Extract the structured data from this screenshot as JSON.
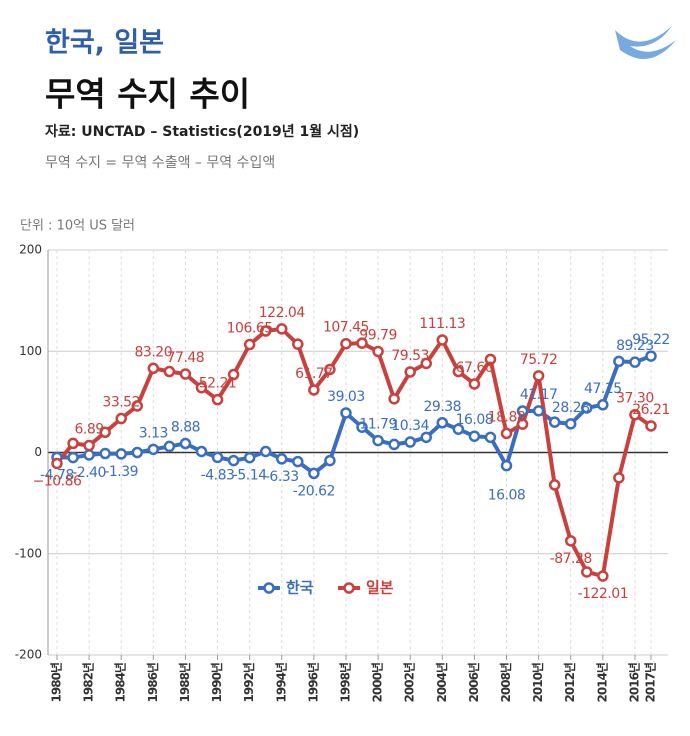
{
  "chart_data": {
    "type": "line",
    "title": "한국, 일본",
    "subtitle": "무역 수지 추이",
    "source": "자료: UNCTAD – Statistics(2019년 1월 시점)",
    "note": "무역 수지 = 무역 수출액 – 무역 수입액",
    "ylabel": "단위 : 10억 US 달러",
    "x": [
      1980,
      1981,
      1982,
      1983,
      1984,
      1985,
      1986,
      1987,
      1988,
      1989,
      1990,
      1991,
      1992,
      1993,
      1994,
      1995,
      1996,
      1997,
      1998,
      1999,
      2000,
      2001,
      2002,
      2003,
      2004,
      2005,
      2006,
      2007,
      2008,
      2009,
      2010,
      2011,
      2012,
      2013,
      2014,
      2015,
      2016,
      2017
    ],
    "xlim": [
      1980,
      2017
    ],
    "xticks": [
      {
        "value": 1980,
        "label": "1980년"
      },
      {
        "value": 1982,
        "label": "1982년"
      },
      {
        "value": 1984,
        "label": "1984년"
      },
      {
        "value": 1986,
        "label": "1986년"
      },
      {
        "value": 1988,
        "label": "1988년"
      },
      {
        "value": 1990,
        "label": "1990년"
      },
      {
        "value": 1992,
        "label": "1992년"
      },
      {
        "value": 1994,
        "label": "1994년"
      },
      {
        "value": 1996,
        "label": "1996년"
      },
      {
        "value": 1998,
        "label": "1998년"
      },
      {
        "value": 2000,
        "label": "2000년"
      },
      {
        "value": 2002,
        "label": "2002년"
      },
      {
        "value": 2004,
        "label": "2004년"
      },
      {
        "value": 2006,
        "label": "2006년"
      },
      {
        "value": 2008,
        "label": "2008년"
      },
      {
        "value": 2010,
        "label": "2010년"
      },
      {
        "value": 2012,
        "label": "2012년"
      },
      {
        "value": 2014,
        "label": "2014년"
      },
      {
        "value": 2016,
        "label": "2016년"
      },
      {
        "value": 2017,
        "label": "2017년"
      }
    ],
    "ylim": [
      -200,
      200
    ],
    "yticks": [
      200,
      100,
      0,
      -100,
      -200
    ],
    "grid": true,
    "series": [
      {
        "name": "한국",
        "color": "#3a6fc0",
        "values": [
          -4.78,
          -5,
          -2.4,
          -1,
          -1.39,
          0,
          3.13,
          6,
          8.88,
          1,
          -4.83,
          -8,
          -5.14,
          1,
          -6.33,
          -9,
          -20.62,
          -8,
          39.03,
          25,
          11.79,
          8,
          10.34,
          15,
          29.38,
          23,
          16.08,
          15,
          -13,
          41,
          41.17,
          30,
          28.28,
          44,
          47.15,
          90,
          89.23,
          95.22
        ],
        "value_labels": [
          "-4.78",
          null,
          "-2.40",
          null,
          "-1.39",
          null,
          "3.13",
          null,
          "8.88",
          null,
          "-4.83",
          null,
          "-5.14",
          null,
          "-6.33",
          null,
          "-20.62",
          null,
          "39.03",
          null,
          "11.79",
          null,
          "10.34",
          null,
          "29.38",
          null,
          "16.08",
          null,
          null,
          null,
          "41.17",
          null,
          "28.28",
          null,
          "47.15",
          null,
          "89.23",
          "95.22"
        ]
      },
      {
        "name": "일본",
        "color": "#c9413d",
        "values": [
          -10.86,
          9,
          6.89,
          20,
          33.52,
          46,
          83.2,
          80,
          77.48,
          64,
          52.21,
          77,
          106.65,
          120,
          122.04,
          107,
          61.77,
          82,
          107.45,
          108,
          99.79,
          53,
          79.53,
          88,
          111.13,
          80,
          67.66,
          92,
          18.88,
          28,
          75.72,
          -32,
          -87.28,
          -118,
          -122.01,
          -25,
          37.3,
          26.21
        ],
        "value_labels": [
          "−10.86",
          null,
          "6.89",
          null,
          "33.52",
          null,
          "83.20",
          null,
          "77.48",
          null,
          "52.21",
          null,
          "106.65",
          null,
          "122.04",
          null,
          "61.77",
          null,
          "107.45",
          null,
          "99.79",
          null,
          "79.53",
          null,
          "111.13",
          null,
          "67.66",
          null,
          "18.88",
          null,
          "75.72",
          null,
          "-87.28",
          null,
          "-122.01",
          null,
          "37.30",
          "26.21"
        ]
      }
    ],
    "annotations": [
      {
        "text": "16.08",
        "x": 2008
      }
    ],
    "legend": "bottom-center"
  }
}
